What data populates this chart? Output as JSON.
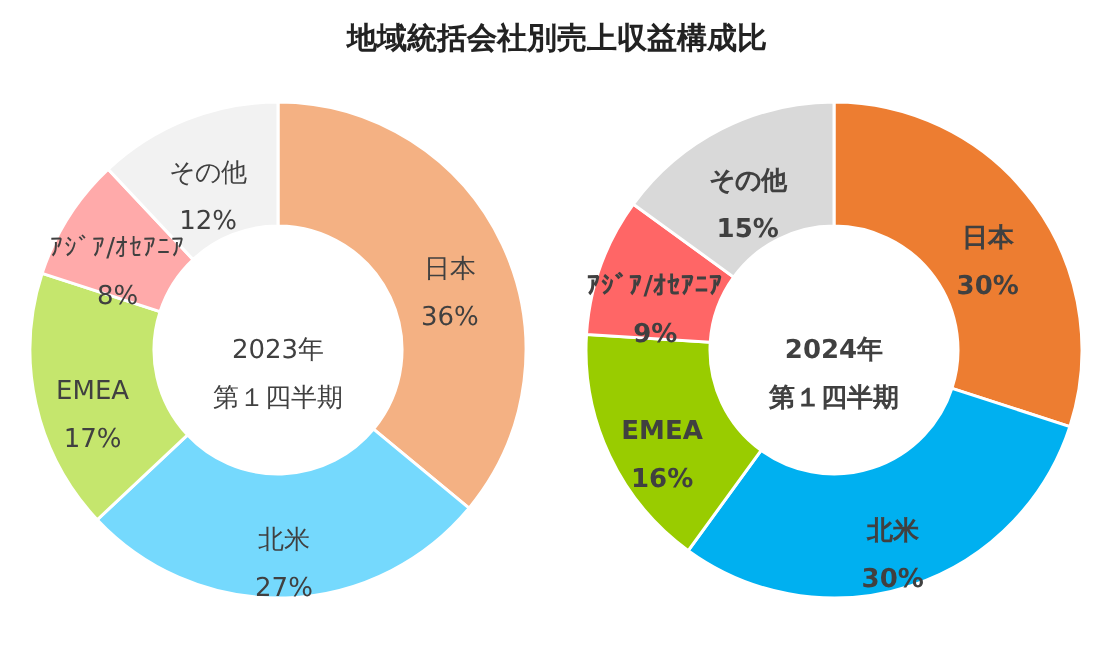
{
  "chart_data": [
    {
      "type": "donut",
      "title": "地域統括会社別売上収益構成比",
      "categories": [
        "日本",
        "北米",
        "EMEA",
        "ｱｼﾞｱ/ｵｾｱﾆｱ",
        "その他"
      ],
      "values": [
        36,
        27,
        17,
        8,
        12
      ],
      "colors": [
        "#f4b183",
        "#75d9fd",
        "#c5e66d",
        "#ffaaaa",
        "#f2f2f2"
      ],
      "value_labels": [
        "36%",
        "27%",
        "17%",
        "8%",
        "12%"
      ],
      "annotations": [
        "2023年",
        "第１四半期"
      ]
    },
    {
      "type": "donut",
      "categories": [
        "日本",
        "北米",
        "EMEA",
        "ｱｼﾞｱ/ｵｾｱﾆｱ",
        "その他"
      ],
      "values": [
        30,
        30,
        16,
        9,
        15
      ],
      "colors": [
        "#ed7d31",
        "#00b0f0",
        "#99cc00",
        "#ff6666",
        "#d9d9d9"
      ],
      "value_labels": [
        "30%",
        "30%",
        "16%",
        "9%",
        "15%"
      ],
      "annotations": [
        "2024年",
        "第１四半期"
      ]
    }
  ]
}
